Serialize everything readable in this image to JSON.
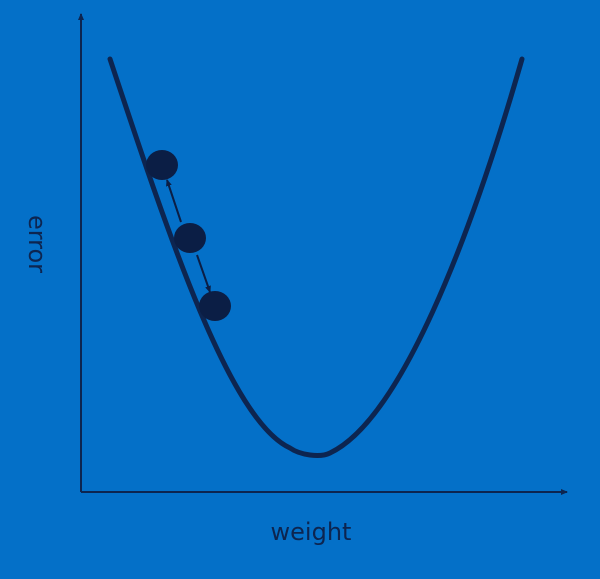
{
  "diagram": {
    "x_axis_label": "weight",
    "y_axis_label": "error",
    "curve_shape": "convex U-shaped error curve (parabola-like)",
    "step_count": 3,
    "colors": {
      "background": "#0470c8",
      "curve": "#0d2550",
      "axis": "#0d2550",
      "point": "#0b1e45",
      "label": "#0d2550"
    }
  }
}
